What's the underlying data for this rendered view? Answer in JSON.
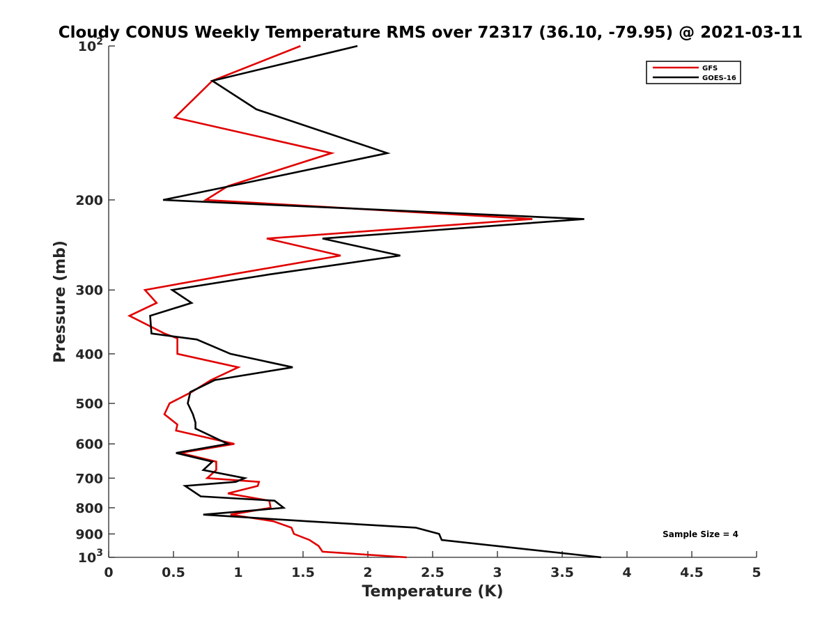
{
  "chart_data": {
    "type": "line",
    "title": "Cloudy CONUS Weekly Temperature RMS over 72317 (36.10, -79.95) @ 2021-03-11",
    "xlabel": "Temperature (K)",
    "ylabel": "Pressure (mb)",
    "xlim": [
      0,
      5
    ],
    "ylim": [
      100,
      1000
    ],
    "yscale": "log",
    "yreversed": true,
    "x_ticks": [
      "0",
      "0.5",
      "1",
      "1.5",
      "2",
      "2.5",
      "3",
      "3.5",
      "4",
      "4.5",
      "5"
    ],
    "x_tick_values": [
      0,
      0.5,
      1,
      1.5,
      2,
      2.5,
      3,
      3.5,
      4,
      4.5,
      5
    ],
    "y_tick_values": [
      100,
      200,
      300,
      400,
      500,
      600,
      700,
      800,
      900,
      1000
    ],
    "y_ticks_plain": [
      "200",
      "300",
      "400",
      "500",
      "600",
      "700",
      "800",
      "900"
    ],
    "y_tick_top": {
      "base": "10",
      "exp": "2"
    },
    "y_tick_bottom": {
      "base": "10",
      "exp": "3"
    },
    "legend_position": "top-right",
    "annotation": "Sample Size = 4",
    "series": [
      {
        "name": "GFS",
        "color": "#e00000",
        "points": [
          [
            1.48,
            100
          ],
          [
            0.8,
            117
          ],
          [
            0.51,
            138
          ],
          [
            1.72,
            162
          ],
          [
            0.92,
            188
          ],
          [
            0.75,
            200
          ],
          [
            3.27,
            218
          ],
          [
            1.22,
            238
          ],
          [
            1.79,
            257
          ],
          [
            0.94,
            280
          ],
          [
            0.28,
            300
          ],
          [
            0.37,
            318
          ],
          [
            0.16,
            337
          ],
          [
            0.43,
            365
          ],
          [
            0.53,
            373
          ],
          [
            0.53,
            400
          ],
          [
            1.0,
            425
          ],
          [
            0.79,
            450
          ],
          [
            0.64,
            475
          ],
          [
            0.47,
            500
          ],
          [
            0.43,
            525
          ],
          [
            0.53,
            550
          ],
          [
            0.52,
            565
          ],
          [
            0.97,
            600
          ],
          [
            0.55,
            625
          ],
          [
            0.83,
            650
          ],
          [
            0.83,
            675
          ],
          [
            0.76,
            700
          ],
          [
            1.16,
            712
          ],
          [
            1.15,
            725
          ],
          [
            0.92,
            750
          ],
          [
            1.24,
            775
          ],
          [
            1.25,
            800
          ],
          [
            0.94,
            825
          ],
          [
            1.27,
            850
          ],
          [
            1.41,
            875
          ],
          [
            1.43,
            900
          ],
          [
            1.55,
            925
          ],
          [
            1.62,
            950
          ],
          [
            1.65,
            975
          ],
          [
            2.3,
            1000
          ]
        ]
      },
      {
        "name": "GOES-16",
        "color": "#000000",
        "points": [
          [
            1.92,
            100
          ],
          [
            0.8,
            117
          ],
          [
            1.14,
            133
          ],
          [
            2.15,
            162
          ],
          [
            0.98,
            187
          ],
          [
            0.42,
            200
          ],
          [
            3.67,
            218
          ],
          [
            1.65,
            238
          ],
          [
            2.25,
            257
          ],
          [
            1.23,
            280
          ],
          [
            0.49,
            300
          ],
          [
            0.64,
            318
          ],
          [
            0.32,
            337
          ],
          [
            0.33,
            365
          ],
          [
            0.68,
            375
          ],
          [
            0.94,
            400
          ],
          [
            1.42,
            425
          ],
          [
            0.82,
            450
          ],
          [
            0.63,
            475
          ],
          [
            0.61,
            500
          ],
          [
            0.65,
            525
          ],
          [
            0.67,
            545
          ],
          [
            0.67,
            560
          ],
          [
            0.92,
            600
          ],
          [
            0.52,
            625
          ],
          [
            0.8,
            650
          ],
          [
            0.73,
            675
          ],
          [
            1.05,
            700
          ],
          [
            0.98,
            712
          ],
          [
            0.59,
            725
          ],
          [
            0.71,
            760
          ],
          [
            1.28,
            775
          ],
          [
            1.35,
            800
          ],
          [
            0.73,
            825
          ],
          [
            1.53,
            850
          ],
          [
            2.37,
            875
          ],
          [
            2.55,
            900
          ],
          [
            2.57,
            925
          ],
          [
            3.8,
            1000
          ]
        ]
      }
    ]
  }
}
